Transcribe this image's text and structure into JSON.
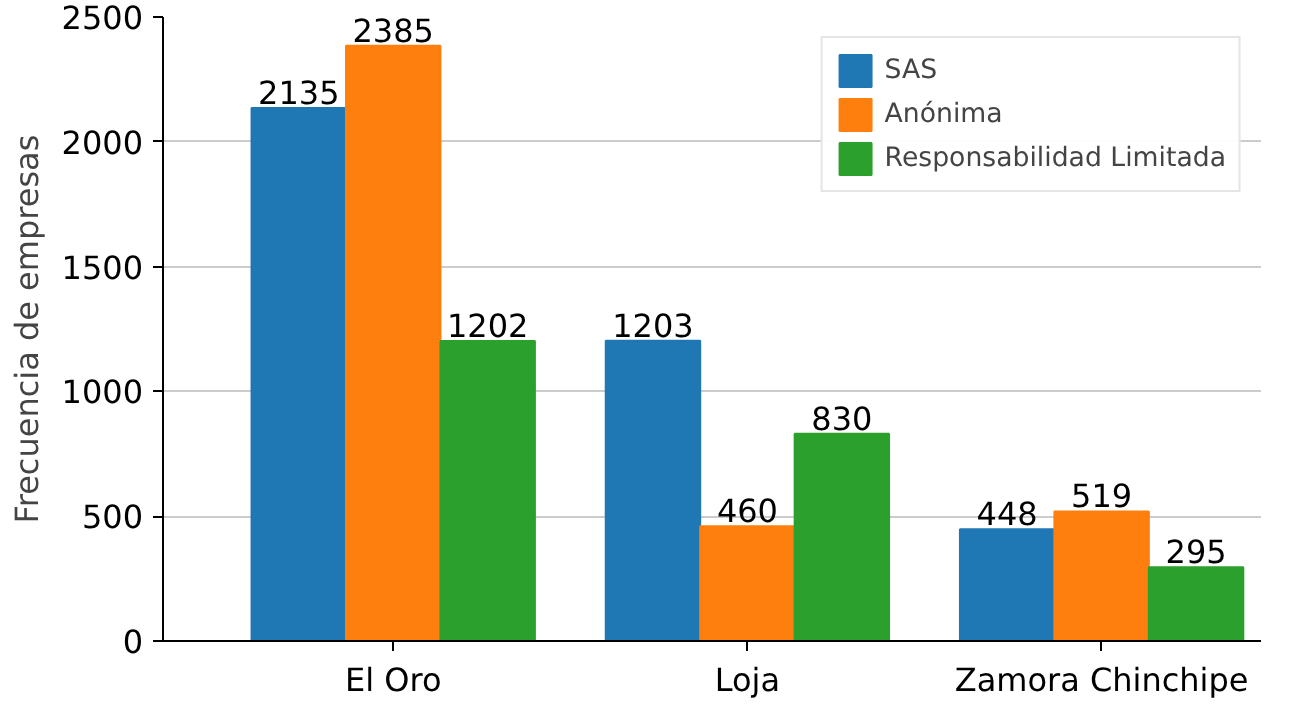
{
  "chart_data": {
    "type": "bar",
    "ylabel": "Frecuencia de empresas",
    "categories": [
      "El Oro",
      "Loja",
      "Zamora Chinchipe"
    ],
    "series": [
      {
        "name": "SAS",
        "color": "#1f77b4",
        "values": [
          2135,
          1203,
          448
        ]
      },
      {
        "name": "Anónima",
        "color": "#ff7f0e",
        "values": [
          2385,
          460,
          519
        ]
      },
      {
        "name": "Responsabilidad Limitada",
        "color": "#2ca02c",
        "values": [
          1202,
          830,
          295
        ]
      }
    ],
    "ylim": [
      0,
      2500
    ],
    "yticks": [
      0,
      500,
      1000,
      1500,
      2000,
      2500
    ],
    "grid": "y",
    "legend": "top right",
    "data_labels": true
  }
}
